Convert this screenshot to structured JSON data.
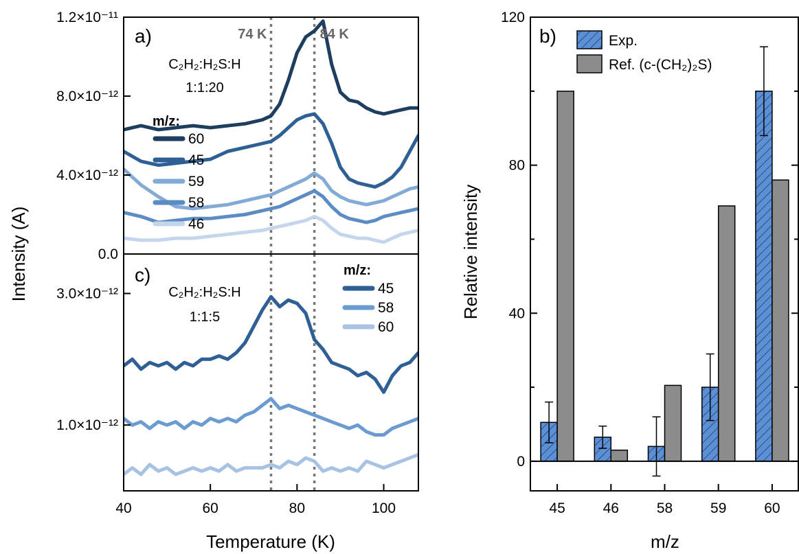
{
  "figure": {
    "ylabel_left": "Intensity (A)",
    "xlabel_left": "Temperature (K)"
  },
  "panel_a": {
    "label": "a)",
    "sample": "C₂H₂:H₂S:H",
    "ratio": "1:1:20",
    "legend_title": "m/z:",
    "markers": [
      {
        "x": 74,
        "label": "74 K"
      },
      {
        "x": 84,
        "label": "84 K"
      }
    ]
  },
  "panel_c": {
    "label": "c)",
    "sample": "C₂H₂:H₂S:H",
    "ratio": "1:1:5",
    "legend_title": "m/z:"
  },
  "panel_b": {
    "label": "b)",
    "legend": [
      "Exp.",
      "Ref. (c-(CH₂)₂S)"
    ]
  },
  "colors": {
    "s60": "#1f3d5e",
    "s45": "#2e5f95",
    "s58": "#5b8cc3",
    "s59": "#84aad6",
    "s46": "#c5d6ec",
    "s58c": "#6b9bd0",
    "s60c": "#a7c2e2",
    "exp_fill": "#5b8fd6",
    "ref_fill": "#8c8c8c",
    "marker": "#777777"
  },
  "chart_data": [
    {
      "type": "line",
      "panel": "a",
      "xlabel": "Temperature (K)",
      "ylabel": "Intensity (A)",
      "xlim": [
        40,
        108
      ],
      "ylim": [
        0,
        1.2e-11
      ],
      "xticks": [
        40,
        60,
        80,
        100
      ],
      "xtick_labels": [
        "40",
        "60",
        "80",
        "100"
      ],
      "yticks": [
        0,
        4e-12,
        8e-12,
        1.2e-11
      ],
      "ytick_labels": [
        "0.0",
        "4.0×10⁻¹²",
        "8.0×10⁻¹²",
        "1.2×10⁻¹¹"
      ],
      "legend_labels": [
        "60",
        "45",
        "59",
        "58",
        "46"
      ],
      "series": [
        {
          "name": "60",
          "color_key": "s60",
          "x": [
            40,
            44,
            48,
            52,
            56,
            60,
            64,
            68,
            72,
            74,
            76,
            78,
            80,
            82,
            84,
            86,
            88,
            90,
            92,
            94,
            96,
            98,
            100,
            102,
            104,
            106,
            108
          ],
          "y": [
            6.3e-12,
            6.5e-12,
            6.3e-12,
            6.4e-12,
            6.5e-12,
            6.4e-12,
            6.5e-12,
            6.6e-12,
            6.8e-12,
            7e-12,
            7.6e-12,
            8.8e-12,
            1.02e-11,
            1.1e-11,
            1.13e-11,
            1.18e-11,
            9.6e-12,
            8.2e-12,
            7.8e-12,
            7.7e-12,
            7.4e-12,
            7.2e-12,
            7.1e-12,
            7.2e-12,
            7.3e-12,
            7.4e-12,
            7.4e-12
          ]
        },
        {
          "name": "45",
          "color_key": "s45",
          "x": [
            40,
            44,
            48,
            52,
            56,
            60,
            64,
            68,
            72,
            74,
            76,
            78,
            80,
            82,
            84,
            86,
            88,
            90,
            92,
            94,
            96,
            98,
            100,
            102,
            104,
            106,
            108
          ],
          "y": [
            5.2e-12,
            4.7e-12,
            4.5e-12,
            4.6e-12,
            4.7e-12,
            4.8e-12,
            5.2e-12,
            5.4e-12,
            5.6e-12,
            5.7e-12,
            6e-12,
            6.4e-12,
            6.8e-12,
            7e-12,
            7.1e-12,
            6.6e-12,
            5.6e-12,
            4.4e-12,
            3.8e-12,
            3.6e-12,
            3.5e-12,
            3.4e-12,
            3.6e-12,
            3.9e-12,
            4.4e-12,
            5.2e-12,
            6e-12
          ]
        },
        {
          "name": "59",
          "color_key": "s59",
          "x": [
            40,
            44,
            48,
            52,
            56,
            60,
            64,
            68,
            72,
            74,
            76,
            78,
            80,
            82,
            84,
            86,
            88,
            90,
            92,
            94,
            96,
            98,
            100,
            102,
            104,
            106,
            108
          ],
          "y": [
            4.3e-12,
            3.5e-12,
            2.9e-12,
            2.4e-12,
            2.3e-12,
            2.4e-12,
            2.5e-12,
            2.7e-12,
            2.9e-12,
            3e-12,
            3.2e-12,
            3.4e-12,
            3.6e-12,
            3.8e-12,
            4.1e-12,
            3.8e-12,
            3.2e-12,
            2.9e-12,
            2.7e-12,
            2.6e-12,
            2.5e-12,
            2.6e-12,
            2.7e-12,
            2.9e-12,
            3.1e-12,
            3.3e-12,
            3.4e-12
          ]
        },
        {
          "name": "58",
          "color_key": "s58",
          "x": [
            40,
            44,
            48,
            52,
            56,
            60,
            64,
            68,
            72,
            74,
            76,
            78,
            80,
            82,
            84,
            86,
            88,
            90,
            92,
            94,
            96,
            98,
            100,
            102,
            104,
            106,
            108
          ],
          "y": [
            2.1e-12,
            1.9e-12,
            1.6e-12,
            1.7e-12,
            1.8e-12,
            1.8e-12,
            1.9e-12,
            2e-12,
            2.2e-12,
            2.3e-12,
            2.4e-12,
            2.6e-12,
            2.8e-12,
            3e-12,
            3.2e-12,
            2.9e-12,
            2.4e-12,
            2e-12,
            1.8e-12,
            1.7e-12,
            1.6e-12,
            1.7e-12,
            1.9e-12,
            2e-12,
            2.1e-12,
            2.2e-12,
            2.3e-12
          ]
        },
        {
          "name": "46",
          "color_key": "s46",
          "x": [
            40,
            44,
            48,
            52,
            56,
            60,
            64,
            68,
            72,
            74,
            76,
            78,
            80,
            82,
            84,
            86,
            88,
            90,
            92,
            94,
            96,
            98,
            100,
            102,
            104,
            106,
            108
          ],
          "y": [
            8e-13,
            7e-13,
            7e-13,
            8e-13,
            8e-13,
            9e-13,
            1e-12,
            1.1e-12,
            1.2e-12,
            1.3e-12,
            1.4e-12,
            1.5e-12,
            1.6e-12,
            1.7e-12,
            1.9e-12,
            1.7e-12,
            1.3e-12,
            1e-12,
            9e-13,
            8e-13,
            8e-13,
            7e-13,
            6e-13,
            8e-13,
            1e-12,
            1.1e-12,
            1.2e-12
          ]
        }
      ]
    },
    {
      "type": "line",
      "panel": "c",
      "xlabel": "Temperature (K)",
      "ylabel": "Intensity (A)",
      "xlim": [
        40,
        108
      ],
      "ylim": [
        0,
        3.6e-12
      ],
      "xticks": [
        40,
        60,
        80,
        100
      ],
      "xtick_labels": [
        "40",
        "60",
        "80",
        "100"
      ],
      "yticks": [
        1e-12,
        3e-12
      ],
      "ytick_labels": [
        "1.0×10⁻¹²",
        "3.0×10⁻¹²"
      ],
      "legend_labels": [
        "45",
        "58",
        "60"
      ],
      "series": [
        {
          "name": "45",
          "color_key": "s45",
          "x": [
            40,
            42,
            44,
            46,
            48,
            50,
            52,
            54,
            56,
            58,
            60,
            62,
            64,
            66,
            68,
            70,
            72,
            74,
            76,
            78,
            80,
            82,
            84,
            86,
            88,
            90,
            92,
            94,
            96,
            98,
            100,
            102,
            104,
            106,
            108
          ],
          "y": [
            1.9e-12,
            2e-12,
            1.85e-12,
            1.95e-12,
            1.9e-12,
            1.95e-12,
            1.85e-12,
            1.95e-12,
            1.9e-12,
            2e-12,
            2e-12,
            2.05e-12,
            2e-12,
            2.1e-12,
            2.25e-12,
            2.5e-12,
            2.75e-12,
            2.95e-12,
            2.8e-12,
            2.9e-12,
            2.85e-12,
            2.7e-12,
            2.3e-12,
            2.15e-12,
            1.95e-12,
            1.9e-12,
            1.85e-12,
            1.75e-12,
            1.8e-12,
            1.7e-12,
            1.5e-12,
            1.75e-12,
            1.9e-12,
            1.95e-12,
            2.1e-12
          ]
        },
        {
          "name": "58",
          "color_key": "s58c",
          "x": [
            40,
            42,
            44,
            46,
            48,
            50,
            52,
            54,
            56,
            58,
            60,
            62,
            64,
            66,
            68,
            70,
            72,
            74,
            76,
            78,
            80,
            82,
            84,
            86,
            88,
            90,
            92,
            94,
            96,
            98,
            100,
            102,
            104,
            106,
            108
          ],
          "y": [
            1.1e-12,
            1e-12,
            1.05e-12,
            9.5e-13,
            1.05e-12,
            1e-12,
            1.05e-12,
            9.5e-13,
            1.05e-12,
            1e-12,
            1.1e-12,
            1.05e-12,
            1.1e-12,
            1.05e-12,
            1.15e-12,
            1.2e-12,
            1.3e-12,
            1.4e-12,
            1.25e-12,
            1.3e-12,
            1.25e-12,
            1.2e-12,
            1.15e-12,
            1.1e-12,
            1.05e-12,
            1e-12,
            9.5e-13,
            1e-12,
            9e-13,
            8.5e-13,
            8.5e-13,
            9.5e-13,
            1e-12,
            1.05e-12,
            1.1e-12
          ]
        },
        {
          "name": "60",
          "color_key": "s60c",
          "x": [
            40,
            42,
            44,
            46,
            48,
            50,
            52,
            54,
            56,
            58,
            60,
            62,
            64,
            66,
            68,
            70,
            72,
            74,
            76,
            78,
            80,
            82,
            84,
            86,
            88,
            90,
            92,
            94,
            96,
            98,
            100,
            102,
            104,
            106,
            108
          ],
          "y": [
            2.5e-13,
            3.5e-13,
            2.5e-13,
            4e-13,
            3e-13,
            3.5e-13,
            2.5e-13,
            3e-13,
            3.5e-13,
            3e-13,
            3.5e-13,
            3e-13,
            4e-13,
            3e-13,
            3.5e-13,
            3.5e-13,
            3.5e-13,
            4e-13,
            3.5e-13,
            4.5e-13,
            4e-13,
            5e-13,
            4.5e-13,
            3e-13,
            3.5e-13,
            3e-13,
            3.5e-13,
            3e-13,
            4.5e-13,
            4e-13,
            3.5e-13,
            4e-13,
            4.5e-13,
            5e-13,
            5.5e-13
          ]
        }
      ]
    },
    {
      "type": "bar",
      "panel": "b",
      "xlabel": "m/z",
      "ylabel": "Relative intensity",
      "categories": [
        "45",
        "46",
        "58",
        "59",
        "60"
      ],
      "ylim": [
        -8,
        120
      ],
      "yticks": [
        0,
        40,
        80,
        120
      ],
      "ytick_labels": [
        "0",
        "40",
        "80",
        "120"
      ],
      "legend_placement": "top-left",
      "series": [
        {
          "name": "Exp.",
          "color_key": "exp_fill",
          "hatched": true,
          "values": [
            10.5,
            6.5,
            4,
            20,
            100
          ],
          "errors": [
            5.5,
            3,
            8,
            9,
            12
          ]
        },
        {
          "name": "Ref. (c-(CH₂)₂S)",
          "color_key": "ref_fill",
          "hatched": false,
          "values": [
            100,
            3,
            20.5,
            69,
            76
          ]
        }
      ]
    }
  ]
}
